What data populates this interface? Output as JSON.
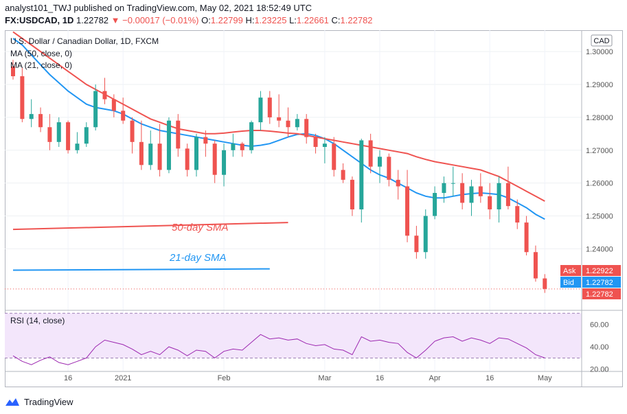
{
  "header": {
    "line1": "analyst101_TWJ published on TradingView.com, May 02, 2021 18:52:49 UTC",
    "symbol": "FX:USDCAD, 1D",
    "last": "1.22782",
    "change": "−0.00017 (−0.01%)",
    "open_label": "O:",
    "open": "1.22799",
    "high_label": "H:",
    "high": "1.23225",
    "low_label": "L:",
    "low": "1.22661",
    "close_label": "C:",
    "close": "1.22782"
  },
  "footer": {
    "brand": "TradingView"
  },
  "chart_data": {
    "type": "candlestick",
    "title": "U.S. Dollar / Canadian Dollar, 1D, FXCM",
    "currency": "CAD",
    "legend": [
      "MA (50, close, 0)",
      "MA (21, close, 0)"
    ],
    "annotations": [
      {
        "text": "50-day SMA",
        "color": "#ef5350"
      },
      {
        "text": "21-day SMA",
        "color": "#2196f3"
      }
    ],
    "ylim": [
      1.2215,
      1.3065
    ],
    "y_ticks": [
      "1.30000",
      "1.29000",
      "1.28000",
      "1.27000",
      "1.26000",
      "1.25000",
      "1.24000"
    ],
    "x_ticks": [
      "16",
      "2021",
      "Feb",
      "Mar",
      "16",
      "Apr",
      "16",
      "May"
    ],
    "x_tick_index": [
      6,
      12,
      23,
      34,
      40,
      46,
      52,
      58
    ],
    "price_labels": [
      {
        "label": "Ask",
        "value": "1.22922",
        "color": "#ef5350"
      },
      {
        "label": "Bid",
        "value": "1.22782",
        "color": "#2196f3"
      },
      {
        "label": "",
        "value": "1.22782",
        "color": "#ef5350"
      }
    ],
    "candles": [
      {
        "o": 1.2955,
        "h": 1.2975,
        "l": 1.2915,
        "c": 1.2925
      },
      {
        "o": 1.2925,
        "h": 1.295,
        "l": 1.2785,
        "c": 1.2795
      },
      {
        "o": 1.2795,
        "h": 1.2855,
        "l": 1.277,
        "c": 1.281
      },
      {
        "o": 1.281,
        "h": 1.283,
        "l": 1.2755,
        "c": 1.277
      },
      {
        "o": 1.277,
        "h": 1.281,
        "l": 1.27,
        "c": 1.2725
      },
      {
        "o": 1.2725,
        "h": 1.28,
        "l": 1.271,
        "c": 1.2785
      },
      {
        "o": 1.2785,
        "h": 1.279,
        "l": 1.269,
        "c": 1.27
      },
      {
        "o": 1.27,
        "h": 1.2755,
        "l": 1.269,
        "c": 1.272
      },
      {
        "o": 1.272,
        "h": 1.2785,
        "l": 1.271,
        "c": 1.277
      },
      {
        "o": 1.277,
        "h": 1.29,
        "l": 1.276,
        "c": 1.288
      },
      {
        "o": 1.288,
        "h": 1.292,
        "l": 1.284,
        "c": 1.2855
      },
      {
        "o": 1.2855,
        "h": 1.287,
        "l": 1.28,
        "c": 1.282
      },
      {
        "o": 1.282,
        "h": 1.286,
        "l": 1.278,
        "c": 1.279
      },
      {
        "o": 1.279,
        "h": 1.28,
        "l": 1.269,
        "c": 1.2725
      },
      {
        "o": 1.2725,
        "h": 1.279,
        "l": 1.264,
        "c": 1.2655
      },
      {
        "o": 1.2655,
        "h": 1.276,
        "l": 1.264,
        "c": 1.272
      },
      {
        "o": 1.272,
        "h": 1.278,
        "l": 1.262,
        "c": 1.264
      },
      {
        "o": 1.264,
        "h": 1.28,
        "l": 1.263,
        "c": 1.279
      },
      {
        "o": 1.279,
        "h": 1.281,
        "l": 1.268,
        "c": 1.2705
      },
      {
        "o": 1.2705,
        "h": 1.272,
        "l": 1.262,
        "c": 1.264
      },
      {
        "o": 1.264,
        "h": 1.275,
        "l": 1.262,
        "c": 1.274
      },
      {
        "o": 1.274,
        "h": 1.276,
        "l": 1.268,
        "c": 1.272
      },
      {
        "o": 1.272,
        "h": 1.273,
        "l": 1.26,
        "c": 1.2625
      },
      {
        "o": 1.2625,
        "h": 1.272,
        "l": 1.259,
        "c": 1.27
      },
      {
        "o": 1.27,
        "h": 1.275,
        "l": 1.268,
        "c": 1.272
      },
      {
        "o": 1.272,
        "h": 1.2725,
        "l": 1.268,
        "c": 1.27
      },
      {
        "o": 1.27,
        "h": 1.279,
        "l": 1.269,
        "c": 1.2785
      },
      {
        "o": 1.2785,
        "h": 1.288,
        "l": 1.276,
        "c": 1.286
      },
      {
        "o": 1.286,
        "h": 1.288,
        "l": 1.278,
        "c": 1.28
      },
      {
        "o": 1.28,
        "h": 1.287,
        "l": 1.277,
        "c": 1.279
      },
      {
        "o": 1.279,
        "h": 1.283,
        "l": 1.274,
        "c": 1.277
      },
      {
        "o": 1.277,
        "h": 1.281,
        "l": 1.276,
        "c": 1.2795
      },
      {
        "o": 1.2795,
        "h": 1.281,
        "l": 1.272,
        "c": 1.274
      },
      {
        "o": 1.274,
        "h": 1.275,
        "l": 1.269,
        "c": 1.271
      },
      {
        "o": 1.271,
        "h": 1.274,
        "l": 1.266,
        "c": 1.272
      },
      {
        "o": 1.272,
        "h": 1.274,
        "l": 1.262,
        "c": 1.264
      },
      {
        "o": 1.264,
        "h": 1.266,
        "l": 1.26,
        "c": 1.261
      },
      {
        "o": 1.261,
        "h": 1.262,
        "l": 1.25,
        "c": 1.252
      },
      {
        "o": 1.252,
        "h": 1.2735,
        "l": 1.248,
        "c": 1.273
      },
      {
        "o": 1.273,
        "h": 1.275,
        "l": 1.263,
        "c": 1.265
      },
      {
        "o": 1.265,
        "h": 1.27,
        "l": 1.26,
        "c": 1.268
      },
      {
        "o": 1.268,
        "h": 1.269,
        "l": 1.259,
        "c": 1.261
      },
      {
        "o": 1.261,
        "h": 1.264,
        "l": 1.255,
        "c": 1.259
      },
      {
        "o": 1.259,
        "h": 1.264,
        "l": 1.242,
        "c": 1.244
      },
      {
        "o": 1.244,
        "h": 1.247,
        "l": 1.237,
        "c": 1.239
      },
      {
        "o": 1.239,
        "h": 1.252,
        "l": 1.237,
        "c": 1.25
      },
      {
        "o": 1.25,
        "h": 1.259,
        "l": 1.249,
        "c": 1.257
      },
      {
        "o": 1.257,
        "h": 1.262,
        "l": 1.254,
        "c": 1.26
      },
      {
        "o": 1.26,
        "h": 1.265,
        "l": 1.256,
        "c": 1.26
      },
      {
        "o": 1.26,
        "h": 1.263,
        "l": 1.252,
        "c": 1.254
      },
      {
        "o": 1.254,
        "h": 1.261,
        "l": 1.25,
        "c": 1.259
      },
      {
        "o": 1.259,
        "h": 1.263,
        "l": 1.254,
        "c": 1.256
      },
      {
        "o": 1.256,
        "h": 1.26,
        "l": 1.249,
        "c": 1.252
      },
      {
        "o": 1.252,
        "h": 1.262,
        "l": 1.248,
        "c": 1.26
      },
      {
        "o": 1.26,
        "h": 1.265,
        "l": 1.252,
        "c": 1.253
      },
      {
        "o": 1.253,
        "h": 1.255,
        "l": 1.246,
        "c": 1.248
      },
      {
        "o": 1.248,
        "h": 1.25,
        "l": 1.238,
        "c": 1.239
      },
      {
        "o": 1.239,
        "h": 1.241,
        "l": 1.23,
        "c": 1.231
      },
      {
        "o": 1.231,
        "h": 1.2323,
        "l": 1.2266,
        "c": 1.2278
      }
    ],
    "ma50": [
      1.306,
      1.304,
      1.302,
      1.3,
      1.298,
      1.296,
      1.294,
      1.292,
      1.29,
      1.2885,
      1.287,
      1.2855,
      1.284,
      1.2825,
      1.281,
      1.2795,
      1.2785,
      1.2775,
      1.2765,
      1.276,
      1.2755,
      1.275,
      1.275,
      1.2752,
      1.2755,
      1.2758,
      1.276,
      1.276,
      1.2758,
      1.2755,
      1.2752,
      1.275,
      1.2745,
      1.274,
      1.2735,
      1.273,
      1.2725,
      1.272,
      1.2715,
      1.271,
      1.2705,
      1.27,
      1.2695,
      1.269,
      1.268,
      1.2672,
      1.2665,
      1.266,
      1.2655,
      1.265,
      1.2645,
      1.264,
      1.263,
      1.262,
      1.2605,
      1.259,
      1.2575,
      1.256,
      1.2545
    ],
    "ma21": [
      1.304,
      1.302,
      1.299,
      1.296,
      1.293,
      1.2905,
      1.288,
      1.286,
      1.284,
      1.283,
      1.2825,
      1.282,
      1.281,
      1.2795,
      1.278,
      1.277,
      1.276,
      1.2755,
      1.275,
      1.2745,
      1.274,
      1.2735,
      1.273,
      1.2725,
      1.272,
      1.2715,
      1.2712,
      1.2715,
      1.272,
      1.273,
      1.274,
      1.2748,
      1.275,
      1.2745,
      1.2735,
      1.272,
      1.27,
      1.268,
      1.266,
      1.264,
      1.2625,
      1.2615,
      1.26,
      1.2585,
      1.257,
      1.256,
      1.2555,
      1.2555,
      1.256,
      1.2565,
      1.2568,
      1.257,
      1.2568,
      1.2565,
      1.2555,
      1.254,
      1.2525,
      1.2505,
      1.249
    ],
    "ma50_extension_x": [
      0,
      30
    ],
    "ma50_extension_y": [
      1.2459,
      1.248
    ],
    "ma21_extension_x": [
      0,
      28
    ],
    "ma21_extension_y": [
      1.2335,
      1.2339
    ],
    "rsi": {
      "title": "RSI (14, close)",
      "ylim": [
        18,
        72
      ],
      "y_ticks": [
        "60.00",
        "40.00",
        "20.00"
      ],
      "y_tick_values": [
        60,
        40,
        20
      ],
      "upper_band": 70,
      "lower_band": 30,
      "values": [
        32,
        27,
        24,
        28,
        31,
        26,
        24,
        27,
        30,
        40,
        46,
        44,
        42,
        38,
        33,
        36,
        33,
        40,
        37,
        32,
        37,
        36,
        30,
        36,
        38,
        37,
        44,
        51,
        47,
        48,
        46,
        47,
        43,
        41,
        42,
        38,
        37,
        33,
        49,
        45,
        46,
        44,
        43,
        35,
        30,
        37,
        45,
        48,
        49,
        45,
        48,
        46,
        43,
        48,
        47,
        43,
        39,
        33,
        30
      ]
    }
  }
}
